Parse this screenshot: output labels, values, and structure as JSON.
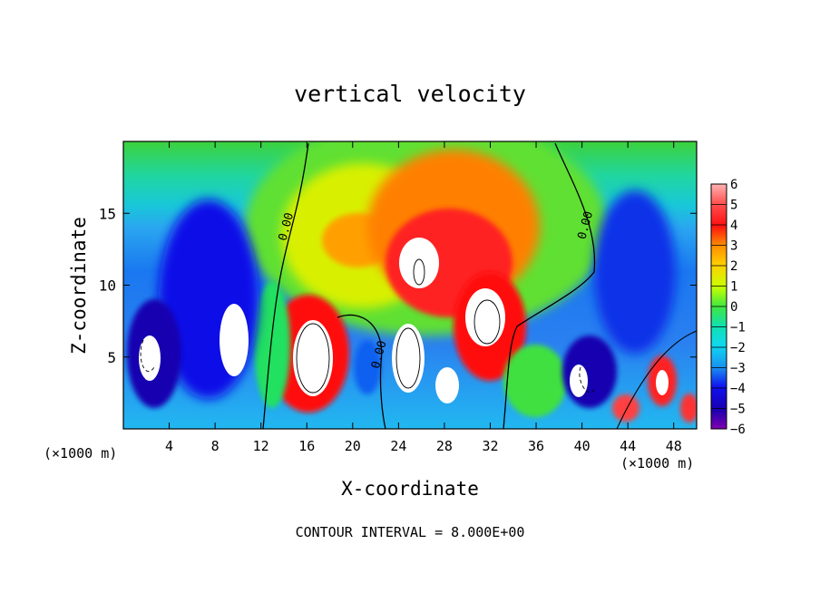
{
  "chart_data": {
    "type": "heatmap",
    "title": "vertical velocity",
    "xlabel": "X-coordinate",
    "ylabel": "Z-coordinate",
    "x_units_left": "(×1000 m)",
    "x_units_right": "(×1000 m)",
    "xlim": [
      0,
      50
    ],
    "ylim": [
      0,
      20
    ],
    "xticks": [
      4,
      8,
      12,
      16,
      20,
      24,
      28,
      32,
      36,
      40,
      44,
      48
    ],
    "yticks": [
      5,
      10,
      15
    ],
    "colorbar": {
      "ticks": [
        6,
        5,
        4,
        3,
        2,
        1,
        0,
        -1,
        -2,
        -3,
        -4,
        -5,
        -6
      ],
      "range": [
        -6,
        6
      ]
    },
    "contour_labels": [
      {
        "text": "0.00",
        "x": 14.5,
        "y": 14.0
      },
      {
        "text": "0.00",
        "x": 22.6,
        "y": 5.1
      },
      {
        "text": "0.00",
        "x": 40.6,
        "y": 14.1
      }
    ],
    "footer": "CONTOUR INTERVAL = 8.000E+00"
  }
}
